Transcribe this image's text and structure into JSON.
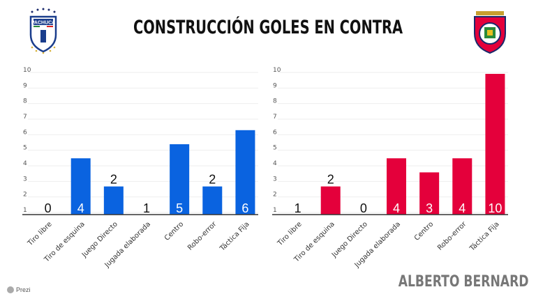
{
  "title": "CONSTRUCCIÓN GOLES EN CONTRA",
  "author": "ALBERTO BERNARD",
  "footer": {
    "brand": "Prezi"
  },
  "logos": {
    "left": "PACHUCA",
    "right": "CHIVAS"
  },
  "chart_data": [
    {
      "type": "bar",
      "team": "Pachuca",
      "color": "#0a63e0",
      "categories": [
        "Tiro libre",
        "Tiro de esquina",
        "Juego Directo",
        "Jugada elaborada",
        "Centro",
        "Robo-error",
        "Táctica Fija"
      ],
      "values": [
        0,
        4,
        2,
        1,
        5,
        2,
        6
      ],
      "yticks": [
        "1",
        "2",
        "3",
        "4",
        "5",
        "6",
        "7",
        "8",
        "9",
        "10"
      ],
      "ylim": [
        0,
        10
      ]
    },
    {
      "type": "bar",
      "team": "Chivas",
      "color": "#e4003b",
      "categories": [
        "Tiro libre",
        "Tiro de esquina",
        "Juego Directo",
        "Jugada elaborada",
        "Centro",
        "Robo-error",
        "Táctica Fija"
      ],
      "values": [
        1,
        2,
        0,
        4,
        3,
        4,
        10
      ],
      "yticks": [
        "1",
        "2",
        "3",
        "4",
        "5",
        "6",
        "7",
        "8",
        "9",
        "10"
      ],
      "ylim": [
        0,
        10
      ]
    }
  ]
}
